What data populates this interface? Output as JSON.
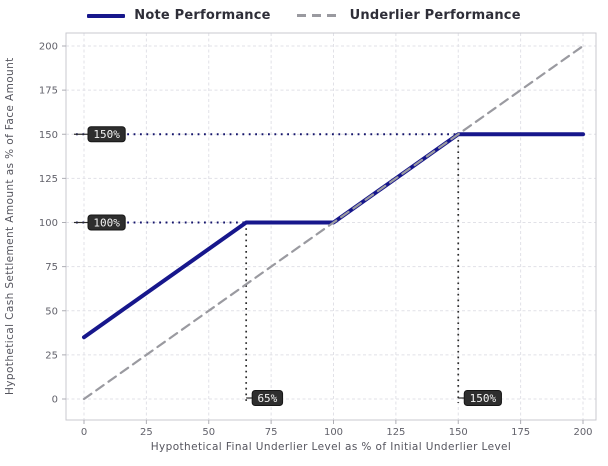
{
  "colors": {
    "note_line": "#17178c",
    "underlier_line": "#9a9aa0",
    "grid": "#e1e1e7",
    "spine": "#c9c9cf",
    "tick_mark": "#aeaeb4",
    "tick_text": "#62626b",
    "axis_label_text": "#55555e",
    "legend_text": "#2e2e38",
    "badge_bg": "#2e2e2e",
    "badge_border": "#161616",
    "badge_text": "#f5f5f5",
    "h_guide": "#15156b",
    "v_guide": "#2b2b2b"
  },
  "legend": {
    "note_label": "Note Performance",
    "underlier_label": "Underlier Performance"
  },
  "chart_data": {
    "type": "line",
    "title": "",
    "xlabel": "Hypothetical Final Underlier Level as % of Initial Underlier Level",
    "ylabel": "Hypothetical Cash Settlement Amount as % of Face Amount",
    "xlim": [
      0,
      200
    ],
    "ylim": [
      0,
      200
    ],
    "xticks": [
      0,
      25,
      50,
      75,
      100,
      125,
      150,
      175,
      200
    ],
    "yticks": [
      0,
      25,
      50,
      75,
      100,
      125,
      150,
      175,
      200
    ],
    "grid": true,
    "legend_position": "top-center",
    "series": [
      {
        "name": "Note Performance",
        "style": "solid",
        "color": "#17178c",
        "points": [
          [
            0,
            35
          ],
          [
            65,
            100
          ],
          [
            100,
            100
          ],
          [
            150,
            150
          ],
          [
            200,
            150
          ]
        ]
      },
      {
        "name": "Underlier Performance",
        "style": "dashed",
        "color": "#9a9aa0",
        "points": [
          [
            0,
            0
          ],
          [
            200,
            200
          ]
        ]
      }
    ],
    "annotations": {
      "h_guides": [
        {
          "y": 150,
          "x_end": 150,
          "label": "150%"
        },
        {
          "y": 100,
          "x_end": 65,
          "label": "100%"
        }
      ],
      "v_guides": [
        {
          "x": 65,
          "y_top": 100,
          "label": "65%"
        },
        {
          "x": 150,
          "y_top": 150,
          "label": "150%"
        }
      ]
    }
  }
}
